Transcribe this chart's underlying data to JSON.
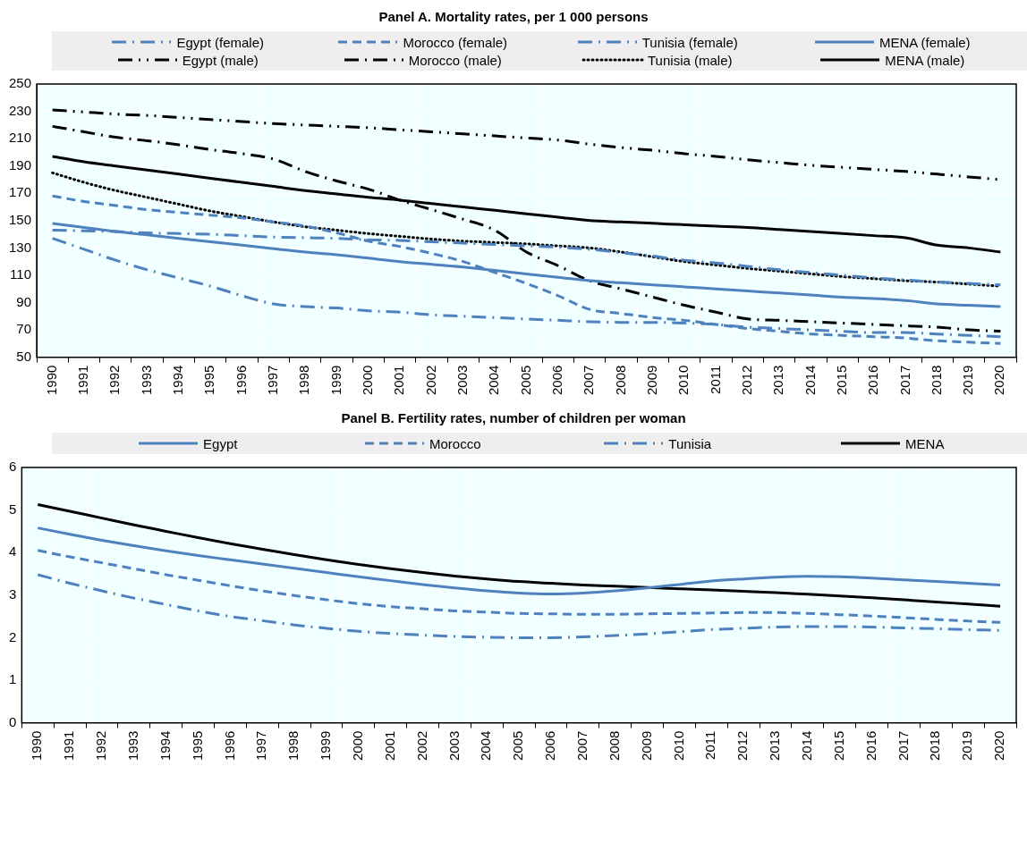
{
  "chart_data": [
    {
      "type": "line",
      "title": "Panel A. Mortality rates, per 1 000 persons",
      "categories": [
        "1990",
        "1991",
        "1992",
        "1993",
        "1994",
        "1995",
        "1996",
        "1997",
        "1998",
        "1999",
        "2000",
        "2001",
        "2002",
        "2003",
        "2004",
        "2005",
        "2006",
        "2007",
        "2008",
        "2009",
        "2010",
        "2011",
        "2012",
        "2013",
        "2014",
        "2015",
        "2016",
        "2017",
        "2018",
        "2019",
        "2020"
      ],
      "series": [
        {
          "name": "Egypt (female)",
          "color": "#4e81bd",
          "line_style": "dashdot",
          "values": [
            137,
            129,
            121,
            114,
            108,
            102,
            95,
            89,
            87,
            86,
            84,
            83,
            81,
            80,
            79,
            78,
            77,
            76,
            75.5,
            75.5,
            75,
            74,
            72,
            71,
            70,
            69,
            68,
            68,
            67,
            66,
            65
          ]
        },
        {
          "name": "Morocco (female)",
          "color": "#4e81bd",
          "line_style": "dashed",
          "values": [
            168,
            164,
            161,
            158,
            156,
            154,
            152,
            149,
            146,
            141,
            135,
            131,
            126,
            120,
            112,
            104,
            95,
            85,
            82,
            79,
            77,
            74,
            71,
            69,
            67,
            66,
            65,
            64,
            62,
            61,
            60
          ]
        },
        {
          "name": "Tunisia (female)",
          "color": "#4e81bd",
          "line_style": "dashdot",
          "values": [
            143,
            142.5,
            142,
            141,
            140.5,
            140,
            139,
            138,
            137.5,
            137,
            136,
            135.5,
            134.5,
            133.5,
            132.5,
            131.5,
            130.5,
            129,
            126.5,
            124,
            121,
            119,
            116.5,
            114,
            112,
            110,
            108,
            106.5,
            105,
            104,
            103
          ]
        },
        {
          "name": "MENA (female)",
          "color": "#4e81bd",
          "line_style": "solid",
          "values": [
            148,
            145,
            142,
            139.5,
            137,
            134.5,
            132,
            129.5,
            127,
            125,
            122.5,
            120,
            118,
            116,
            113.5,
            111,
            108.5,
            106,
            104.5,
            103,
            101.5,
            100,
            98.5,
            97,
            95.5,
            94,
            93,
            91.5,
            89,
            88,
            87
          ]
        },
        {
          "name": "Egypt (male)",
          "color": "#000000",
          "line_style": "dashdotdot",
          "values": [
            231,
            229.5,
            228,
            227,
            225.5,
            224,
            222.5,
            221,
            220,
            219,
            218,
            216.5,
            215,
            213.5,
            212,
            210.5,
            209,
            206,
            203.5,
            201.5,
            199,
            197,
            194.5,
            192.5,
            190.5,
            189,
            187.5,
            186,
            184,
            182,
            180
          ]
        },
        {
          "name": "Morocco (male)",
          "color": "#000000",
          "line_style": "dashdot",
          "values": [
            219,
            215,
            211,
            208.5,
            205.5,
            202,
            199,
            195,
            186,
            179,
            173,
            165,
            158,
            151,
            143,
            127,
            117,
            106,
            100,
            94,
            88,
            83,
            78,
            77,
            76,
            75,
            74,
            73,
            72,
            70,
            69
          ]
        },
        {
          "name": "Tunisia (male)",
          "color": "#000000",
          "line_style": "dotted",
          "values": [
            185,
            178,
            172,
            167,
            162,
            157,
            153,
            149,
            145.5,
            143,
            140.5,
            138.5,
            136.5,
            135,
            134,
            133,
            131.5,
            130,
            127,
            123.5,
            120,
            117.5,
            115,
            113,
            111,
            109,
            107.5,
            106,
            105,
            103.5,
            102
          ]
        },
        {
          "name": "MENA (male)",
          "color": "#000000",
          "line_style": "solid",
          "values": [
            197,
            193,
            190,
            187,
            184,
            181,
            178,
            175,
            172,
            169.5,
            167,
            165,
            162.5,
            160,
            157.5,
            155,
            152.5,
            150,
            149,
            148,
            147,
            146,
            145,
            143.5,
            142,
            140.5,
            139,
            137.5,
            132,
            130,
            127
          ]
        }
      ],
      "ylim": [
        50,
        250
      ],
      "yticks": [
        50,
        70,
        90,
        110,
        130,
        150,
        170,
        190,
        210,
        230,
        250
      ],
      "grid": true,
      "legend": "top"
    },
    {
      "type": "line",
      "title": "Panel B. Fertility rates, number of children per woman",
      "categories": [
        "1990",
        "1991",
        "1992",
        "1993",
        "1994",
        "1995",
        "1996",
        "1997",
        "1998",
        "1999",
        "2000",
        "2001",
        "2002",
        "2003",
        "2004",
        "2005",
        "2006",
        "2007",
        "2008",
        "2009",
        "2010",
        "2011",
        "2012",
        "2013",
        "2014",
        "2015",
        "2016",
        "2017",
        "2018",
        "2019",
        "2020"
      ],
      "series": [
        {
          "name": "Egypt",
          "color": "#4e81bd",
          "line_style": "solid",
          "values": [
            4.58,
            4.43,
            4.29,
            4.16,
            4.04,
            3.93,
            3.83,
            3.73,
            3.63,
            3.53,
            3.43,
            3.34,
            3.25,
            3.17,
            3.1,
            3.05,
            3.03,
            3.05,
            3.1,
            3.17,
            3.25,
            3.33,
            3.38,
            3.42,
            3.44,
            3.43,
            3.4,
            3.36,
            3.32,
            3.28,
            3.24
          ]
        },
        {
          "name": "Morocco",
          "color": "#4e81bd",
          "line_style": "dashed",
          "values": [
            4.05,
            3.9,
            3.76,
            3.62,
            3.48,
            3.35,
            3.22,
            3.1,
            2.99,
            2.89,
            2.8,
            2.73,
            2.68,
            2.63,
            2.6,
            2.57,
            2.56,
            2.55,
            2.55,
            2.56,
            2.57,
            2.58,
            2.59,
            2.59,
            2.57,
            2.54,
            2.51,
            2.47,
            2.43,
            2.39,
            2.36
          ]
        },
        {
          "name": "Tunisia",
          "color": "#4e81bd",
          "line_style": "dashdot",
          "values": [
            3.48,
            3.28,
            3.1,
            2.93,
            2.78,
            2.63,
            2.5,
            2.4,
            2.3,
            2.22,
            2.15,
            2.1,
            2.06,
            2.03,
            2.01,
            2.0,
            2.0,
            2.02,
            2.05,
            2.09,
            2.14,
            2.19,
            2.22,
            2.25,
            2.26,
            2.26,
            2.25,
            2.23,
            2.21,
            2.19,
            2.17
          ]
        },
        {
          "name": "MENA",
          "color": "#000000",
          "line_style": "solid",
          "values": [
            5.13,
            4.97,
            4.81,
            4.65,
            4.5,
            4.35,
            4.21,
            4.08,
            3.95,
            3.83,
            3.72,
            3.62,
            3.53,
            3.45,
            3.38,
            3.32,
            3.28,
            3.24,
            3.21,
            3.18,
            3.15,
            3.12,
            3.09,
            3.06,
            3.02,
            2.98,
            2.94,
            2.89,
            2.84,
            2.79,
            2.74
          ]
        }
      ],
      "ylim": [
        0,
        6
      ],
      "yticks": [
        0,
        1,
        2,
        3,
        4,
        5,
        6
      ],
      "grid": true,
      "legend": "top"
    }
  ]
}
